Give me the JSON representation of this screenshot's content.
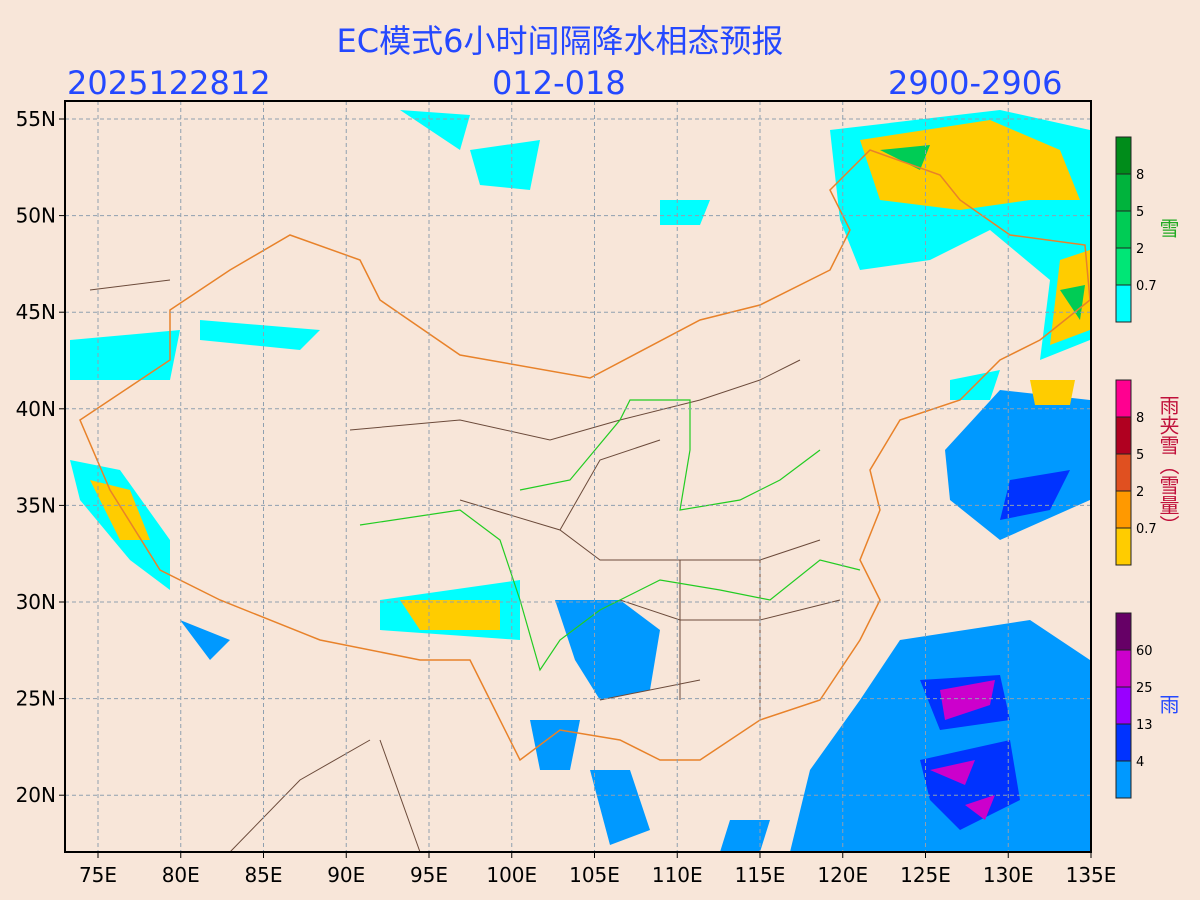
{
  "header": {
    "title": "EC模式6小时间隔降水相态预报",
    "init_time": "2025122812",
    "forecast_hours": "012-018",
    "valid_time": "2900-2906"
  },
  "map": {
    "lon_ticks": [
      "75E",
      "80E",
      "85E",
      "90E",
      "95E",
      "100E",
      "105E",
      "110E",
      "115E",
      "120E",
      "125E",
      "130E",
      "135E"
    ],
    "lat_ticks": [
      "55N",
      "50N",
      "45N",
      "40N",
      "35N",
      "30N",
      "25N",
      "20N"
    ],
    "grid": true,
    "background_color": "#f8e6d9",
    "border_colors": {
      "national": "#e8822a",
      "provincial": "#6b4a3a",
      "yellow_river_yangtze": "#22cc22"
    }
  },
  "legends": {
    "snow": {
      "label": "雪",
      "ticks": [
        "0.7",
        "2",
        "5",
        "8"
      ],
      "colors": [
        "#00ffff",
        "#00e676",
        "#00cc55",
        "#00b33c",
        "#008c1a"
      ]
    },
    "sleet": {
      "label": "雨夹雪（雪量）",
      "ticks": [
        "0.7",
        "2",
        "5",
        "8"
      ],
      "colors": [
        "#ffcc00",
        "#ff9900",
        "#e05020",
        "#b00020",
        "#ff0090"
      ]
    },
    "rain": {
      "label": "雨",
      "ticks": [
        "4",
        "13",
        "25",
        "60"
      ],
      "colors": [
        "#0099ff",
        "#0033ff",
        "#9900ff",
        "#cc00cc",
        "#660066"
      ]
    }
  }
}
